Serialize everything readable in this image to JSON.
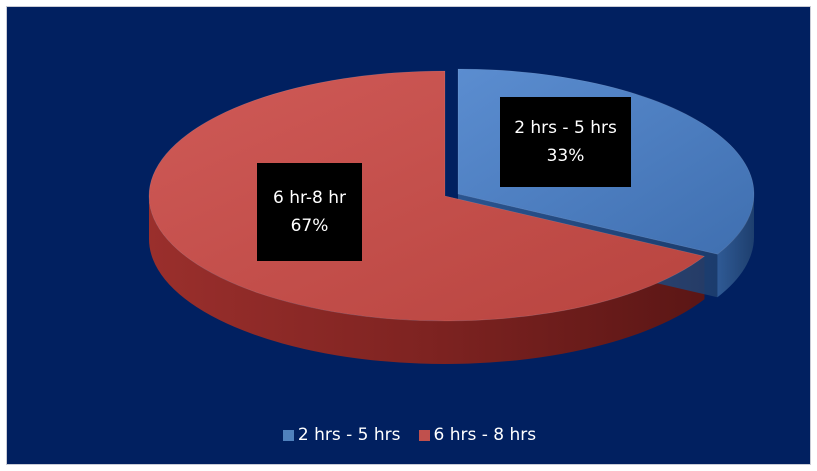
{
  "chart_data": {
    "type": "pie",
    "style": "3d-exploded",
    "title": "",
    "categories": [
      "6 hr-8 hr",
      "2 hrs - 5 hrs"
    ],
    "values": [
      67,
      33
    ],
    "units": "%",
    "data_labels": [
      {
        "name": "6 hr-8 hr",
        "value": "67%"
      },
      {
        "name": "2 hrs - 5 hrs",
        "value": "33%"
      }
    ],
    "colors": [
      "#c0504d",
      "#4f81bd"
    ],
    "legend": {
      "position": "bottom",
      "entries": [
        "2 hrs - 5 hrs",
        "6 hrs - 8 hrs"
      ]
    },
    "background": "#012060"
  }
}
